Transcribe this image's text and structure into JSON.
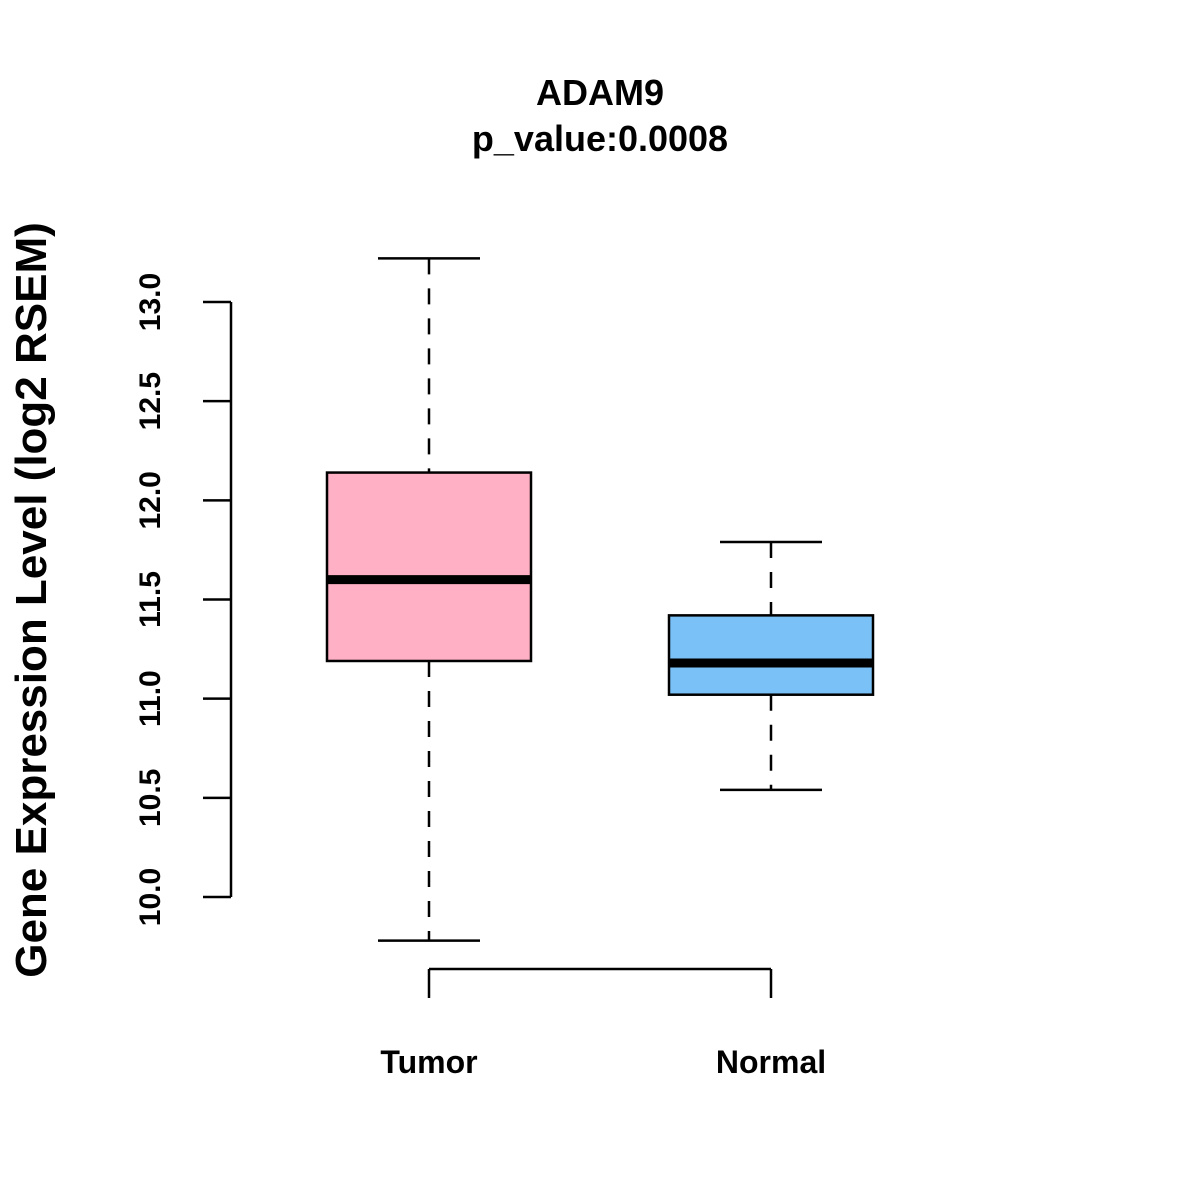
{
  "chart_data": {
    "type": "box",
    "title": "ADAM9",
    "subtitle": "p_value:0.0008",
    "xlabel": "",
    "ylabel": "Gene Expression Level (log2 RSEM)",
    "ylim": [
      10.0,
      13.0
    ],
    "yticks": [
      "10.0",
      "10.5",
      "11.0",
      "11.5",
      "12.0",
      "12.5",
      "13.0"
    ],
    "grid": false,
    "categories": [
      "Tumor",
      "Normal"
    ],
    "series": [
      {
        "name": "Tumor",
        "whisker_low": 9.78,
        "q1": 11.19,
        "median": 11.6,
        "q3": 12.14,
        "whisker_high": 13.22,
        "color": "#FFB0C4"
      },
      {
        "name": "Normal",
        "whisker_low": 10.54,
        "q1": 11.02,
        "median": 11.18,
        "q3": 11.42,
        "whisker_high": 11.79,
        "color": "#7AC1F7"
      }
    ]
  }
}
